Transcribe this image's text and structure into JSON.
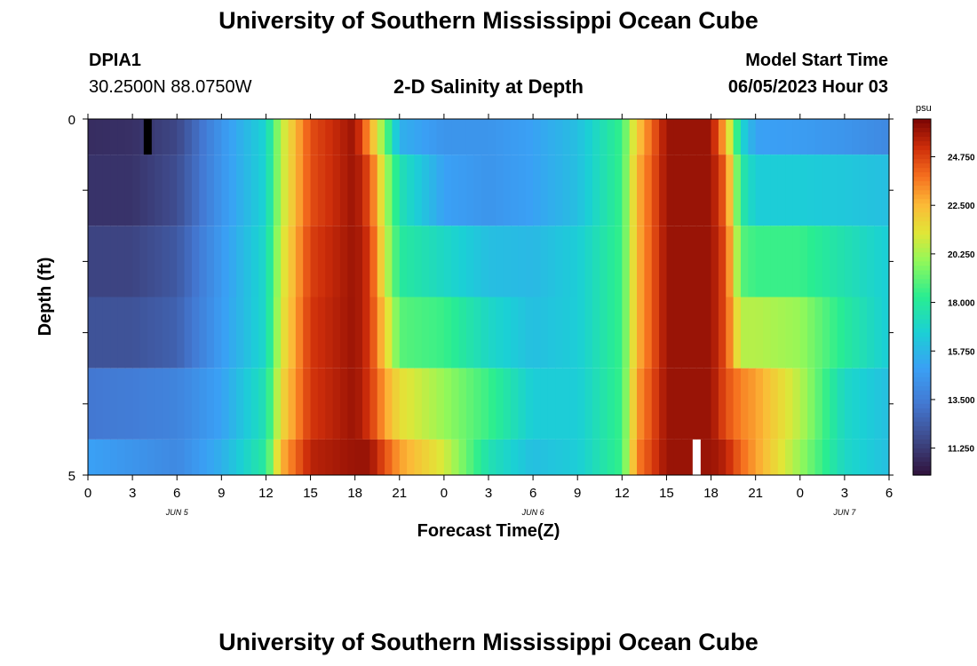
{
  "header": {
    "title": "University of Southern Mississippi Ocean Cube",
    "station": "DPIA1",
    "location": "30.2500N  88.0750W",
    "chart_title": "2-D Salinity at Depth",
    "start_label": "Model Start Time",
    "start_time": "06/05/2023 Hour 03"
  },
  "footer": {
    "title": "University of Southern Mississippi Ocean Cube"
  },
  "chart_data": {
    "type": "heatmap",
    "title": "2-D Salinity at Depth",
    "xlabel": "Forecast Time(Z)",
    "ylabel": "Depth (ft)",
    "x_tick_labels": [
      "0",
      "3",
      "6",
      "9",
      "12",
      "15",
      "18",
      "21",
      "0",
      "3",
      "6",
      "9",
      "12",
      "15",
      "18",
      "21",
      "0",
      "3",
      "6"
    ],
    "date_labels": [
      {
        "label": "JUN 5",
        "at_hour": 6
      },
      {
        "label": "JUN 6",
        "at_hour": 30
      },
      {
        "label": "JUN 7",
        "at_hour": 51
      }
    ],
    "y_tick_labels": [
      "0",
      "5"
    ],
    "ylim": [
      0,
      5
    ],
    "colorbar": {
      "unit": "psu",
      "tick_labels": [
        "24.750",
        "22.500",
        "20.250",
        "18.000",
        "15.750",
        "13.500",
        "11.250"
      ],
      "tick_values": [
        24.75,
        22.5,
        20.25,
        18.0,
        15.75,
        13.5,
        11.25
      ],
      "range": [
        10.0,
        26.5
      ]
    },
    "hours": [
      0,
      3,
      6,
      9,
      12,
      13,
      15,
      18,
      19,
      20,
      21,
      0,
      3,
      6,
      9,
      12,
      13,
      15,
      18,
      19,
      20,
      21,
      0,
      3,
      6
    ],
    "depth_layers": [
      {
        "depth_range": "0-0.5",
        "values": [
          10.8,
          10.9,
          11.6,
          14.5,
          16.8,
          20.5,
          24.5,
          26.0,
          23.0,
          19.5,
          15.5,
          14.5,
          14.5,
          15.0,
          16.0,
          18.5,
          22.0,
          26.0,
          26.0,
          22.5,
          17.0,
          15.0,
          14.8,
          14.5,
          14.0
        ]
      },
      {
        "depth_range": "0.5-1.5",
        "values": [
          11.0,
          11.0,
          11.8,
          14.5,
          16.8,
          20.5,
          24.5,
          26.0,
          24.5,
          20.5,
          17.5,
          15.0,
          14.5,
          15.0,
          16.0,
          18.5,
          22.5,
          26.0,
          26.0,
          24.0,
          18.0,
          16.5,
          16.5,
          16.3,
          16.0
        ]
      },
      {
        "depth_range": "1.5-2.5",
        "values": [
          11.5,
          11.5,
          12.2,
          14.7,
          17.0,
          20.8,
          24.8,
          26.0,
          25.0,
          21.0,
          18.0,
          17.0,
          16.0,
          15.8,
          16.5,
          18.5,
          22.5,
          26.0,
          26.0,
          24.5,
          19.0,
          18.5,
          18.5,
          17.5,
          16.5
        ]
      },
      {
        "depth_range": "2.5-3.5",
        "values": [
          12.0,
          12.0,
          12.5,
          14.8,
          17.0,
          21.0,
          25.0,
          26.0,
          25.0,
          22.0,
          19.0,
          18.5,
          17.0,
          16.0,
          16.5,
          18.5,
          22.5,
          26.0,
          26.0,
          24.5,
          20.5,
          20.5,
          20.0,
          18.0,
          16.5
        ]
      },
      {
        "depth_range": "3.5-4.5",
        "values": [
          13.3,
          13.5,
          13.8,
          15.0,
          17.5,
          21.5,
          25.0,
          26.0,
          25.0,
          23.0,
          21.5,
          20.0,
          18.5,
          16.5,
          16.5,
          18.5,
          23.0,
          26.0,
          26.0,
          24.5,
          23.5,
          23.0,
          20.5,
          17.0,
          16.0
        ]
      },
      {
        "depth_range": "4.5-5",
        "values": [
          15.0,
          14.5,
          14.0,
          15.5,
          18.0,
          22.5,
          25.5,
          26.0,
          26.0,
          24.5,
          23.0,
          21.0,
          17.5,
          16.0,
          16.5,
          18.5,
          23.5,
          26.0,
          26.0,
          25.5,
          24.0,
          23.0,
          20.0,
          17.0,
          16.0
        ]
      }
    ],
    "missing_cells": [
      {
        "hour": 4,
        "depth_range": "0-0.5",
        "color": "#000000"
      },
      {
        "hour": 41,
        "depth_range": "4.5-5",
        "color": "#ffffff"
      }
    ]
  }
}
